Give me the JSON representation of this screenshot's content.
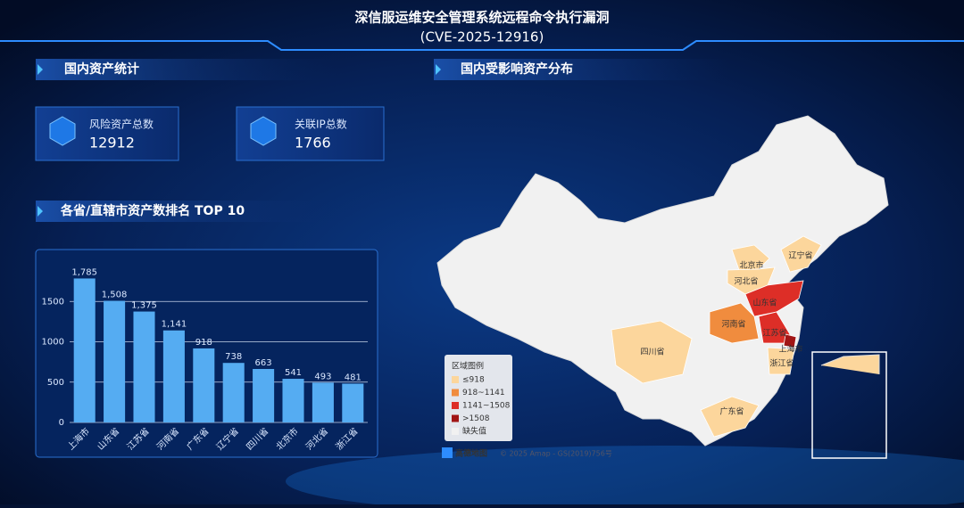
{
  "header": {
    "title": "深信服运维安全管理系统远程命令执行漏洞",
    "subtitle": "(CVE-2025-12916)"
  },
  "sections": {
    "assets": "国内资产统计",
    "map": "国内受影响资产分布",
    "ranking": "各省/直辖市资产数排名 TOP 10"
  },
  "cards": [
    {
      "label": "风险资产总数",
      "value": 12912
    },
    {
      "label": "关联IP总数",
      "value": 1766
    }
  ],
  "chart_data": {
    "type": "bar",
    "categories": [
      "上海市",
      "山东省",
      "江苏省",
      "河南省",
      "广东省",
      "辽宁省",
      "四川省",
      "北京市",
      "河北省",
      "浙江省"
    ],
    "values": [
      1785,
      1508,
      1375,
      1141,
      918,
      738,
      663,
      541,
      493,
      481
    ],
    "value_labels": [
      "1,785",
      "1,508",
      "1,375",
      "1,141",
      "918",
      "738",
      "663",
      "541",
      "493",
      "481"
    ],
    "color": "#55acf2",
    "ylim": [
      0,
      2000
    ],
    "yticks": [
      0,
      500,
      1000,
      1500
    ],
    "grid": true
  },
  "map": {
    "legend_title": "区域图例",
    "legend": [
      {
        "label": "≤918",
        "color": "#fcd69c"
      },
      {
        "label": "918~1141",
        "color": "#f08c3e"
      },
      {
        "label": "1141~1508",
        "color": "#dd2e27"
      },
      {
        "label": ">1508",
        "color": "#a11515"
      },
      {
        "label": "缺失值",
        "color": "#f1f1f1"
      }
    ],
    "provinces": [
      {
        "name": "辽宁省",
        "color": "#fcd69c"
      },
      {
        "name": "北京市",
        "color": "#fcd69c"
      },
      {
        "name": "河北省",
        "color": "#fcd69c"
      },
      {
        "name": "山东省",
        "color": "#dd2e27"
      },
      {
        "name": "河南省",
        "color": "#f08c3e"
      },
      {
        "name": "江苏省",
        "color": "#dd2e27"
      },
      {
        "name": "上海市",
        "color": "#a11515"
      },
      {
        "name": "浙江省",
        "color": "#fcd69c"
      },
      {
        "name": "四川省",
        "color": "#fcd69c"
      },
      {
        "name": "广东省",
        "color": "#fcd69c"
      }
    ],
    "attribution": {
      "brand": "高德地图",
      "text": "© 2025 Amap - GS(2019)756号"
    }
  }
}
